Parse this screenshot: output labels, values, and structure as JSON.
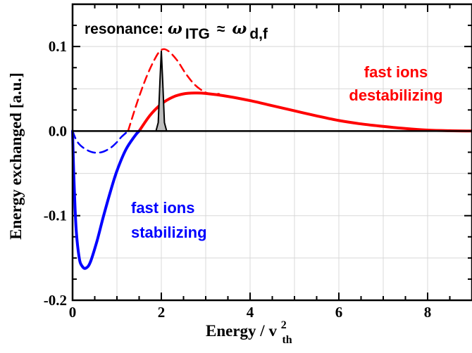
{
  "chart_data": {
    "type": "line",
    "title": "",
    "xlabel": {
      "main": "Energy / v",
      "sup": "2",
      "sub": "th"
    },
    "ylabel": "Energy exchanged [a.u.]",
    "xlim": [
      0,
      9
    ],
    "ylim": [
      -0.2,
      0.15
    ],
    "x_ticks": [
      0,
      2,
      4,
      6,
      8
    ],
    "x_tick_labels": [
      "0",
      "2",
      "4",
      "6",
      "8"
    ],
    "y_ticks": [
      -0.2,
      -0.1,
      0.0,
      0.1
    ],
    "y_tick_labels": [
      "-0.2",
      "-0.1",
      "0.0",
      "0.1"
    ],
    "grid": true,
    "series": [
      {
        "color": "#ff0000",
        "style": "solid",
        "x": [
          1.5,
          1.75,
          2.0,
          2.25,
          2.5,
          2.75,
          3.0,
          3.5,
          4.0,
          4.5,
          5.0,
          5.5,
          6.0,
          6.5,
          7.0,
          7.5,
          8.0,
          8.5,
          9.0
        ],
        "y": [
          0.0,
          0.019,
          0.032,
          0.04,
          0.044,
          0.045,
          0.0445,
          0.041,
          0.036,
          0.03,
          0.024,
          0.018,
          0.0125,
          0.0085,
          0.0055,
          0.003,
          0.0012,
          0.0004,
          0.0001
        ]
      },
      {
        "color": "#ff0000",
        "style": "dashed",
        "x": [
          1.25,
          1.45,
          1.65,
          1.85,
          2.0,
          2.15,
          2.35,
          2.55,
          2.75,
          2.95,
          3.1,
          3.3
        ],
        "y": [
          0.0,
          0.033,
          0.062,
          0.085,
          0.096,
          0.095,
          0.084,
          0.068,
          0.055,
          0.047,
          0.044,
          0.044
        ]
      },
      {
        "color": "#0000ff",
        "style": "solid",
        "x": [
          0.0,
          0.03,
          0.08,
          0.15,
          0.22,
          0.3,
          0.4,
          0.55,
          0.7,
          0.85,
          1.0,
          1.2,
          1.4,
          1.5
        ],
        "y": [
          0.0,
          -0.055,
          -0.115,
          -0.15,
          -0.16,
          -0.162,
          -0.155,
          -0.13,
          -0.1,
          -0.072,
          -0.047,
          -0.022,
          -0.006,
          0.0
        ]
      },
      {
        "color": "#0000ff",
        "style": "dashed",
        "x": [
          0.0,
          0.1,
          0.25,
          0.45,
          0.65,
          0.85,
          1.0,
          1.1,
          1.25
        ],
        "y": [
          0.0,
          -0.012,
          -0.02,
          -0.025,
          -0.025,
          -0.02,
          -0.013,
          -0.007,
          0.0
        ]
      },
      {
        "color": "#000000",
        "style": "filled-peak",
        "x": [
          1.88,
          1.93,
          1.97,
          2.0,
          2.03,
          2.07,
          2.12
        ],
        "y": [
          0.0,
          0.01,
          0.06,
          0.095,
          0.06,
          0.01,
          0.0
        ]
      }
    ],
    "annotations": {
      "resonance_prefix": "resonance: ",
      "omega": "ω",
      "sub_itg": "ITG",
      "approx": "≈",
      "sub_df": "d,f",
      "destab_line1": "fast ions",
      "destab_line2": "destabilizing",
      "stab_line1": "fast ions",
      "stab_line2": "stabilizing"
    },
    "colors": {
      "destabilizing": "#ff0000",
      "stabilizing": "#0000ff"
    }
  }
}
